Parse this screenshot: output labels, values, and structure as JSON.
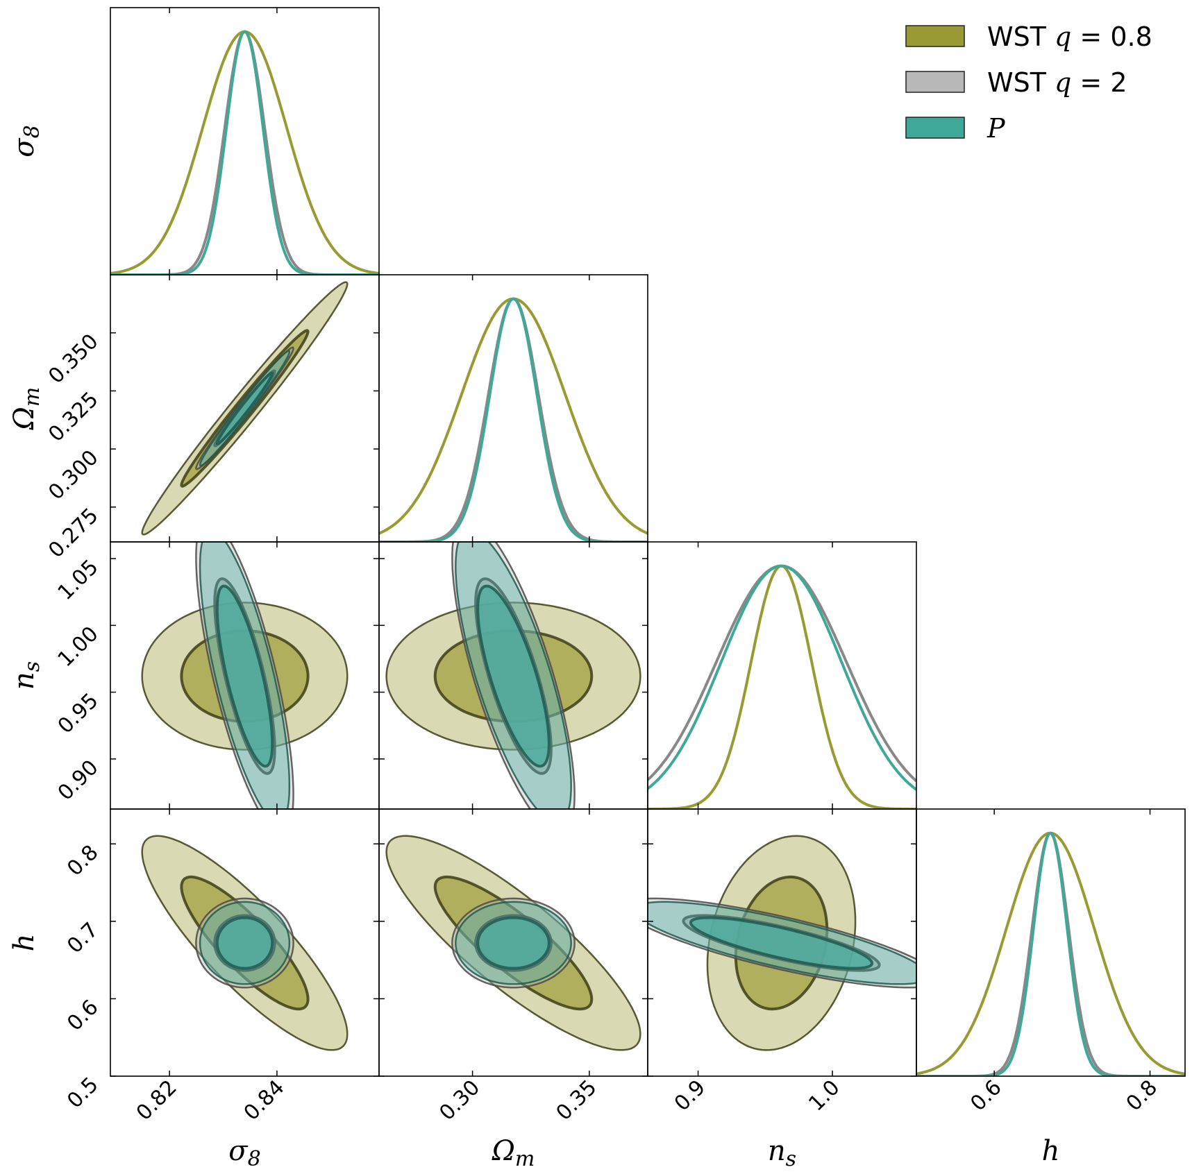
{
  "chart_data": {
    "type": "corner",
    "parameters": [
      {
        "key": "sigma8",
        "label_base": "σ",
        "label_sub": "8",
        "range": [
          0.809,
          0.859
        ],
        "ticks": [
          0.82,
          0.84
        ],
        "tick_labels": [
          "0.82",
          "0.84"
        ]
      },
      {
        "key": "omega_m",
        "label_base": "Ω",
        "label_sub": "m",
        "range": [
          0.26,
          0.375
        ],
        "ticks": [
          0.275,
          0.3,
          0.325,
          0.35
        ],
        "tick_labels": [
          "0.275",
          "0.300",
          "0.325",
          "0.350"
        ],
        "x_tick_labels": [
          "0.30",
          "0.35"
        ],
        "x_ticks": [
          0.3,
          0.35
        ]
      },
      {
        "key": "n_s",
        "label_base": "n",
        "label_sub": "s",
        "range": [
          0.8625,
          1.0625
        ],
        "ticks": [
          0.9,
          0.95,
          1.0,
          1.05
        ],
        "tick_labels": [
          "0.90",
          "0.95",
          "1.00",
          "1.05"
        ],
        "x_tick_labels": [
          "0.9",
          "1.0"
        ],
        "x_ticks": [
          0.9,
          1.0
        ]
      },
      {
        "key": "h",
        "label_base": "h",
        "label_sub": "",
        "range": [
          0.5,
          0.845
        ],
        "ticks": [
          0.5,
          0.6,
          0.7,
          0.8
        ],
        "tick_labels": [
          "0.5",
          "0.6",
          "0.7",
          "0.8"
        ],
        "x_tick_labels": [
          "0.6",
          "0.8"
        ],
        "x_ticks": [
          0.6,
          0.8
        ]
      }
    ],
    "series": [
      {
        "name": "WST q = 0.8",
        "legend_prefix": "WST ",
        "legend_var": "q",
        "legend_suffix": " = 0.8",
        "color": "#9a9a34",
        "fill": "#9a9a34",
        "outline": "#3e3e18",
        "mean": [
          0.834,
          0.3175,
          0.962,
          0.672
        ],
        "sigma": [
          0.0078,
          0.0222,
          0.0225,
          0.0565
        ],
        "corr": [
          [
            1,
            0.985,
            0,
            -0.85
          ],
          [
            0.985,
            1,
            0,
            -0.85
          ],
          [
            0,
            0,
            1,
            0.2
          ],
          [
            -0.85,
            -0.85,
            0.2,
            1
          ]
        ]
      },
      {
        "name": "WST q = 2",
        "legend_prefix": "WST ",
        "legend_var": "q",
        "legend_suffix": " = 2",
        "color": "#888888",
        "fill": "#b8b8b8",
        "outline": "#4a4a4a",
        "mean": [
          0.834,
          0.3175,
          0.962,
          0.672
        ],
        "sigma": [
          0.0037,
          0.0107,
          0.0483,
          0.0235
        ],
        "corr": [
          [
            1,
            0.985,
            -0.75,
            0
          ],
          [
            0.985,
            1,
            -0.75,
            0
          ],
          [
            -0.75,
            -0.75,
            1,
            -0.8
          ],
          [
            0,
            0,
            -0.8,
            1
          ]
        ]
      },
      {
        "name": "P",
        "legend_prefix": "",
        "legend_var": "P",
        "legend_suffix": "",
        "color": "#3fa898",
        "fill": "#3fa898",
        "outline": "#1e5a50",
        "mean": [
          0.834,
          0.3175,
          0.962,
          0.672
        ],
        "sigma": [
          0.0034,
          0.0101,
          0.0447,
          0.0217
        ],
        "corr": [
          [
            1,
            0.985,
            -0.75,
            0
          ],
          [
            0.985,
            1,
            -0.75,
            0
          ],
          [
            -0.75,
            -0.75,
            1,
            -0.8
          ],
          [
            0,
            0,
            -0.8,
            1
          ]
        ]
      }
    ],
    "contour_levels": [
      "68%",
      "95%"
    ],
    "legend_position": "top-right"
  }
}
